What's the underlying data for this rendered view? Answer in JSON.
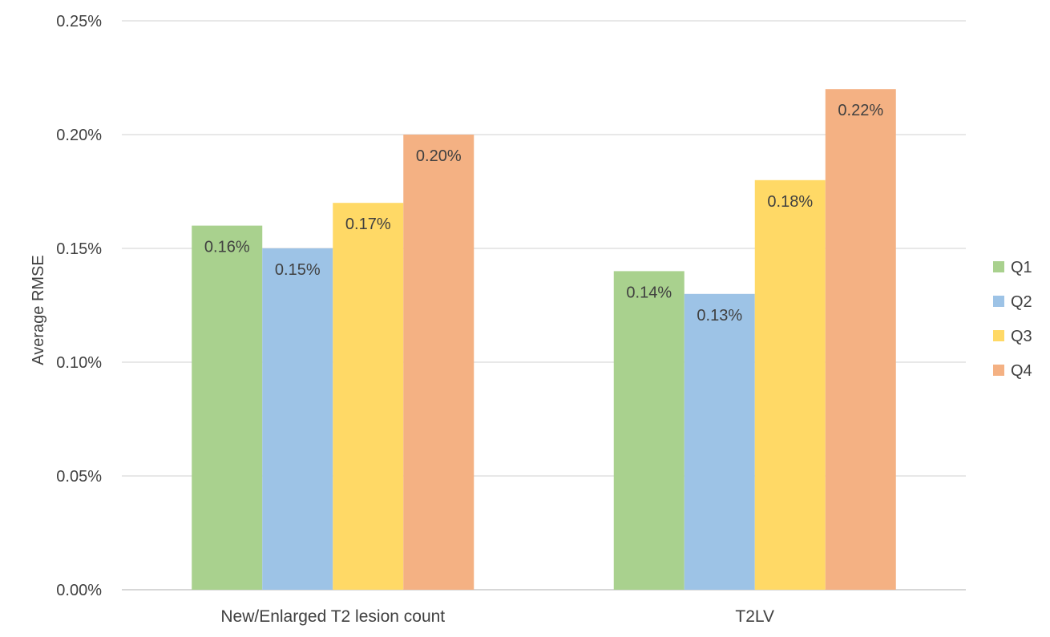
{
  "chart_data": {
    "type": "bar",
    "title": "",
    "xlabel": "",
    "ylabel": "Average RMSE",
    "categories": [
      "New/Enlarged T2 lesion count",
      "T2LV"
    ],
    "series": [
      {
        "name": "Q1",
        "color": "#a9d18e",
        "values": [
          0.16,
          0.14
        ],
        "labels": [
          "0.16%",
          "0.14%"
        ]
      },
      {
        "name": "Q2",
        "color": "#9dc3e6",
        "values": [
          0.15,
          0.13
        ],
        "labels": [
          "0.15%",
          "0.13%"
        ]
      },
      {
        "name": "Q3",
        "color": "#ffd966",
        "values": [
          0.17,
          0.18
        ],
        "labels": [
          "0.17%",
          "0.18%"
        ]
      },
      {
        "name": "Q4",
        "color": "#f4b183",
        "values": [
          0.2,
          0.22
        ],
        "labels": [
          "0.20%",
          "0.22%"
        ]
      }
    ],
    "ylim": [
      0,
      0.25
    ],
    "yticks": [
      0,
      0.05,
      0.1,
      0.15,
      0.2,
      0.25
    ],
    "ytick_labels": [
      "0.00%",
      "0.05%",
      "0.10%",
      "0.15%",
      "0.20%",
      "0.25%"
    ],
    "grid": true,
    "legend_position": "right"
  }
}
